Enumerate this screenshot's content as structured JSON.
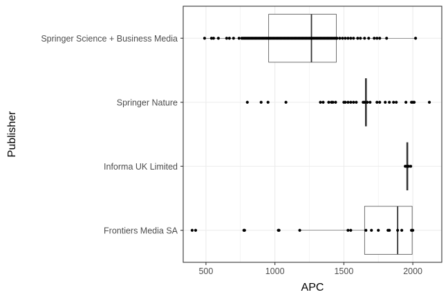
{
  "chart_data": {
    "type": "boxplot",
    "orientation": "horizontal",
    "title": "",
    "xlabel": "APC",
    "ylabel": "Publisher",
    "xlim": [
      335,
      2210
    ],
    "xticks": [
      500,
      1000,
      1500,
      2000
    ],
    "grid": true,
    "legend": "none",
    "categories": [
      "Springer Science + Business Media",
      "Springer Nature",
      "Informa UK Limited",
      "Frontiers Media SA"
    ],
    "series": [
      {
        "category": "Springer Science + Business Media",
        "box": {
          "whisker_low": 490,
          "q1": 955,
          "median": 1265,
          "q3": 1445,
          "whisker_high": 2020
        },
        "points": [
          490,
          540,
          555,
          590,
          650,
          670,
          700,
          740,
          760,
          770,
          780,
          790,
          800,
          810,
          820,
          830,
          840,
          850,
          860,
          870,
          880,
          890,
          900,
          910,
          920,
          930,
          940,
          950,
          960,
          970,
          980,
          990,
          1000,
          1010,
          1020,
          1030,
          1040,
          1050,
          1060,
          1070,
          1080,
          1090,
          1100,
          1110,
          1120,
          1130,
          1140,
          1150,
          1160,
          1170,
          1180,
          1190,
          1200,
          1210,
          1220,
          1230,
          1240,
          1250,
          1260,
          1270,
          1280,
          1290,
          1300,
          1310,
          1320,
          1330,
          1340,
          1350,
          1360,
          1370,
          1380,
          1390,
          1400,
          1410,
          1420,
          1430,
          1440,
          1450,
          1470,
          1490,
          1510,
          1530,
          1550,
          1570,
          1600,
          1620,
          1650,
          1680,
          1720,
          1740,
          1760,
          1810,
          2020
        ]
      },
      {
        "category": "Springer Nature",
        "box": {
          "whisker_low": 1660,
          "q1": 1660,
          "median": 1660,
          "q3": 1660,
          "whisker_high": 1660
        },
        "points": [
          800,
          900,
          950,
          1080,
          1330,
          1350,
          1390,
          1410,
          1420,
          1440,
          1500,
          1510,
          1530,
          1550,
          1570,
          1590,
          1640,
          1650,
          1670,
          1690,
          1740,
          1760,
          1800,
          1830,
          1860,
          1880,
          1950,
          1990,
          2000,
          2010,
          2120
        ]
      },
      {
        "category": "Informa UK Limited",
        "box": {
          "whisker_low": 1960,
          "q1": 1960,
          "median": 1960,
          "q3": 1960,
          "whisker_high": 1960
        },
        "points": [
          1945,
          1955,
          1960,
          1970,
          1985
        ]
      },
      {
        "category": "Frontiers Media SA",
        "box": {
          "whisker_low": 1180,
          "q1": 1650,
          "median": 1890,
          "q3": 1995,
          "whisker_high": 2000
        },
        "points": [
          400,
          425,
          775,
          780,
          1025,
          1030,
          1180,
          1530,
          1550,
          1660,
          1700,
          1750,
          1820,
          1830,
          1890,
          1920,
          1990,
          2000
        ]
      }
    ]
  }
}
